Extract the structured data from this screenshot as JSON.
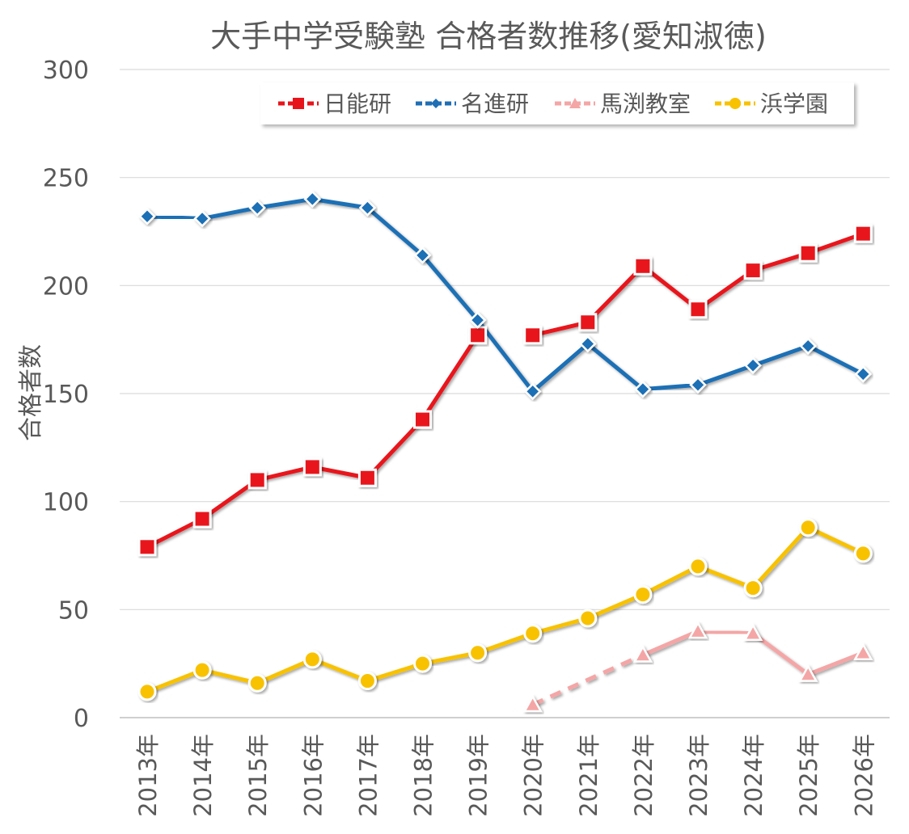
{
  "chart_data": {
    "type": "line",
    "title": "大手中学受験塾 合格者数推移(愛知淑徳)",
    "xlabel": "",
    "ylabel": "合格者数",
    "ylim": [
      0,
      300
    ],
    "yticks": [
      0,
      50,
      100,
      150,
      200,
      250,
      300
    ],
    "grid": true,
    "legend_position": "top-right",
    "categories": [
      "2013年",
      "2014年",
      "2015年",
      "2016年",
      "2017年",
      "2018年",
      "2019年",
      "2020年",
      "2021年",
      "2022年",
      "2023年",
      "2024年",
      "2025年",
      "2026年"
    ],
    "series": [
      {
        "name": "日能研",
        "color": "#e8141c",
        "marker": "square",
        "dash": "solid",
        "values": [
          79,
          92,
          110,
          116,
          111,
          138,
          177,
          177,
          183,
          209,
          189,
          207,
          215,
          224
        ]
      },
      {
        "name": "名進研",
        "color": "#1f6fb5",
        "marker": "diamond",
        "dash": "solid",
        "values": [
          232,
          231,
          236,
          240,
          236,
          214,
          184,
          151,
          173,
          152,
          154,
          163,
          172,
          159
        ]
      },
      {
        "name": "馬渕教室",
        "color": "#f4a6a6",
        "marker": "triangle",
        "dash": "dashed-first-segment",
        "values": [
          null,
          null,
          null,
          null,
          null,
          null,
          null,
          6,
          null,
          29,
          40,
          39,
          20,
          30
        ]
      },
      {
        "name": "浜学園",
        "color": "#f8c200",
        "marker": "circle",
        "dash": "solid",
        "values": [
          12,
          22,
          16,
          27,
          17,
          25,
          30,
          39,
          46,
          57,
          70,
          60,
          88,
          76
        ]
      }
    ]
  }
}
